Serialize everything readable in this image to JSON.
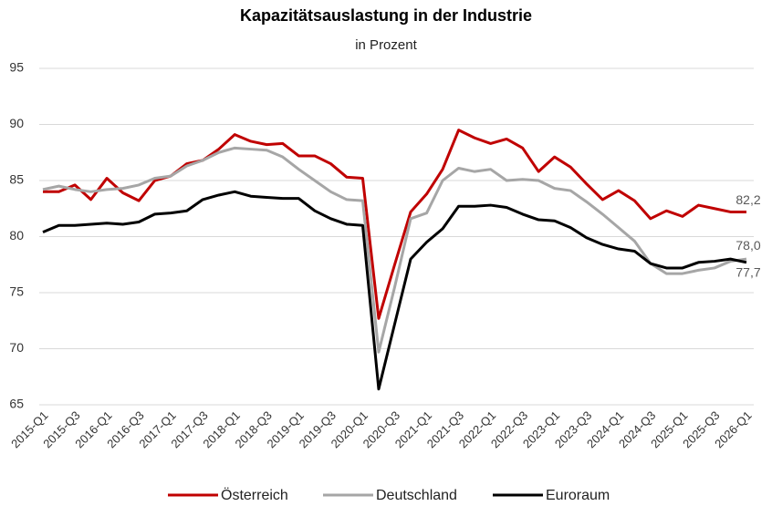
{
  "chart_data": {
    "type": "line",
    "title": "Kapazitätsauslastung  in der Industrie",
    "subtitle": "in Prozent",
    "categories": [
      "2015-Q1",
      null,
      "2015-Q3",
      null,
      "2016-Q1",
      null,
      "2016-Q3",
      null,
      "2017-Q1",
      null,
      "2017-Q3",
      null,
      "2018-Q1",
      null,
      "2018-Q3",
      null,
      "2019-Q1",
      null,
      "2019-Q3",
      null,
      "2020-Q1",
      null,
      "2020-Q3",
      null,
      "2021-Q1",
      null,
      "2021-Q3",
      null,
      "2022-Q1",
      null,
      "2022-Q3",
      null,
      "2023-Q1",
      null,
      "2023-Q3",
      null,
      "2024-Q1",
      null,
      "2024-Q3",
      null,
      "2025-Q1",
      null,
      "2025-Q3",
      null,
      "2026-Q1"
    ],
    "series": [
      {
        "name": "Österreich",
        "color": "#c00000",
        "values": [
          84.0,
          84.0,
          84.6,
          83.3,
          85.2,
          83.9,
          83.2,
          85.0,
          85.4,
          86.5,
          86.8,
          87.8,
          89.1,
          88.5,
          88.2,
          88.3,
          87.2,
          87.2,
          86.5,
          85.3,
          85.2,
          72.7,
          77.5,
          82.2,
          83.8,
          86.0,
          89.5,
          88.8,
          88.3,
          88.7,
          87.9,
          85.8,
          87.1,
          86.2,
          84.7,
          83.3,
          84.1,
          83.2,
          81.6,
          82.3,
          81.8,
          82.8,
          82.5,
          82.2,
          82.2
        ],
        "value_labels": [
          null,
          null,
          null,
          null,
          null,
          null,
          null,
          null,
          null,
          null,
          null,
          null,
          null,
          null,
          null,
          null,
          null,
          null,
          null,
          null,
          null,
          null,
          null,
          null,
          null,
          null,
          null,
          null,
          null,
          null,
          null,
          null,
          null,
          null,
          null,
          null,
          null,
          null,
          null,
          null,
          null,
          null,
          null,
          null,
          "82,2"
        ]
      },
      {
        "name": "Deutschland",
        "color": "#a6a6a6",
        "values": [
          84.2,
          84.5,
          84.2,
          84.0,
          84.2,
          84.3,
          84.6,
          85.2,
          85.4,
          86.3,
          86.8,
          87.5,
          87.9,
          87.8,
          87.7,
          87.1,
          86.0,
          85.0,
          84.0,
          83.3,
          83.2,
          69.7,
          75.5,
          81.6,
          82.1,
          85.0,
          86.1,
          85.8,
          86.0,
          85.0,
          85.1,
          85.0,
          84.3,
          84.1,
          83.1,
          82.0,
          80.8,
          79.6,
          77.6,
          76.7,
          76.7,
          77.0,
          77.2,
          77.8,
          78.0
        ],
        "value_labels": [
          null,
          null,
          null,
          null,
          null,
          null,
          null,
          null,
          null,
          null,
          null,
          null,
          null,
          null,
          null,
          null,
          null,
          null,
          null,
          null,
          null,
          null,
          null,
          null,
          null,
          null,
          null,
          null,
          null,
          null,
          null,
          null,
          null,
          null,
          null,
          null,
          null,
          null,
          null,
          null,
          null,
          null,
          null,
          null,
          "78,0"
        ]
      },
      {
        "name": "Euroraum",
        "color": "#000000",
        "values": [
          80.4,
          81.0,
          81.0,
          81.1,
          81.2,
          81.1,
          81.3,
          82.0,
          82.1,
          82.3,
          83.3,
          83.7,
          84.0,
          83.6,
          83.5,
          83.4,
          83.4,
          82.3,
          81.6,
          81.1,
          81.0,
          66.4,
          72.2,
          78.0,
          79.5,
          80.7,
          82.7,
          82.7,
          82.8,
          82.6,
          82.0,
          81.5,
          81.4,
          80.8,
          79.9,
          79.3,
          78.9,
          78.7,
          77.6,
          77.2,
          77.2,
          77.7,
          77.8,
          78.0,
          77.7
        ],
        "value_labels": [
          null,
          null,
          null,
          null,
          null,
          null,
          null,
          null,
          null,
          null,
          null,
          null,
          null,
          null,
          null,
          null,
          null,
          null,
          null,
          null,
          null,
          null,
          null,
          null,
          null,
          null,
          null,
          null,
          null,
          null,
          null,
          null,
          null,
          null,
          null,
          null,
          null,
          null,
          null,
          null,
          null,
          null,
          null,
          null,
          "77,7"
        ]
      }
    ],
    "ylim": [
      65,
      95
    ],
    "yticks": [
      65,
      70,
      75,
      80,
      85,
      90,
      95
    ],
    "grid": true,
    "legend": "bottom"
  }
}
